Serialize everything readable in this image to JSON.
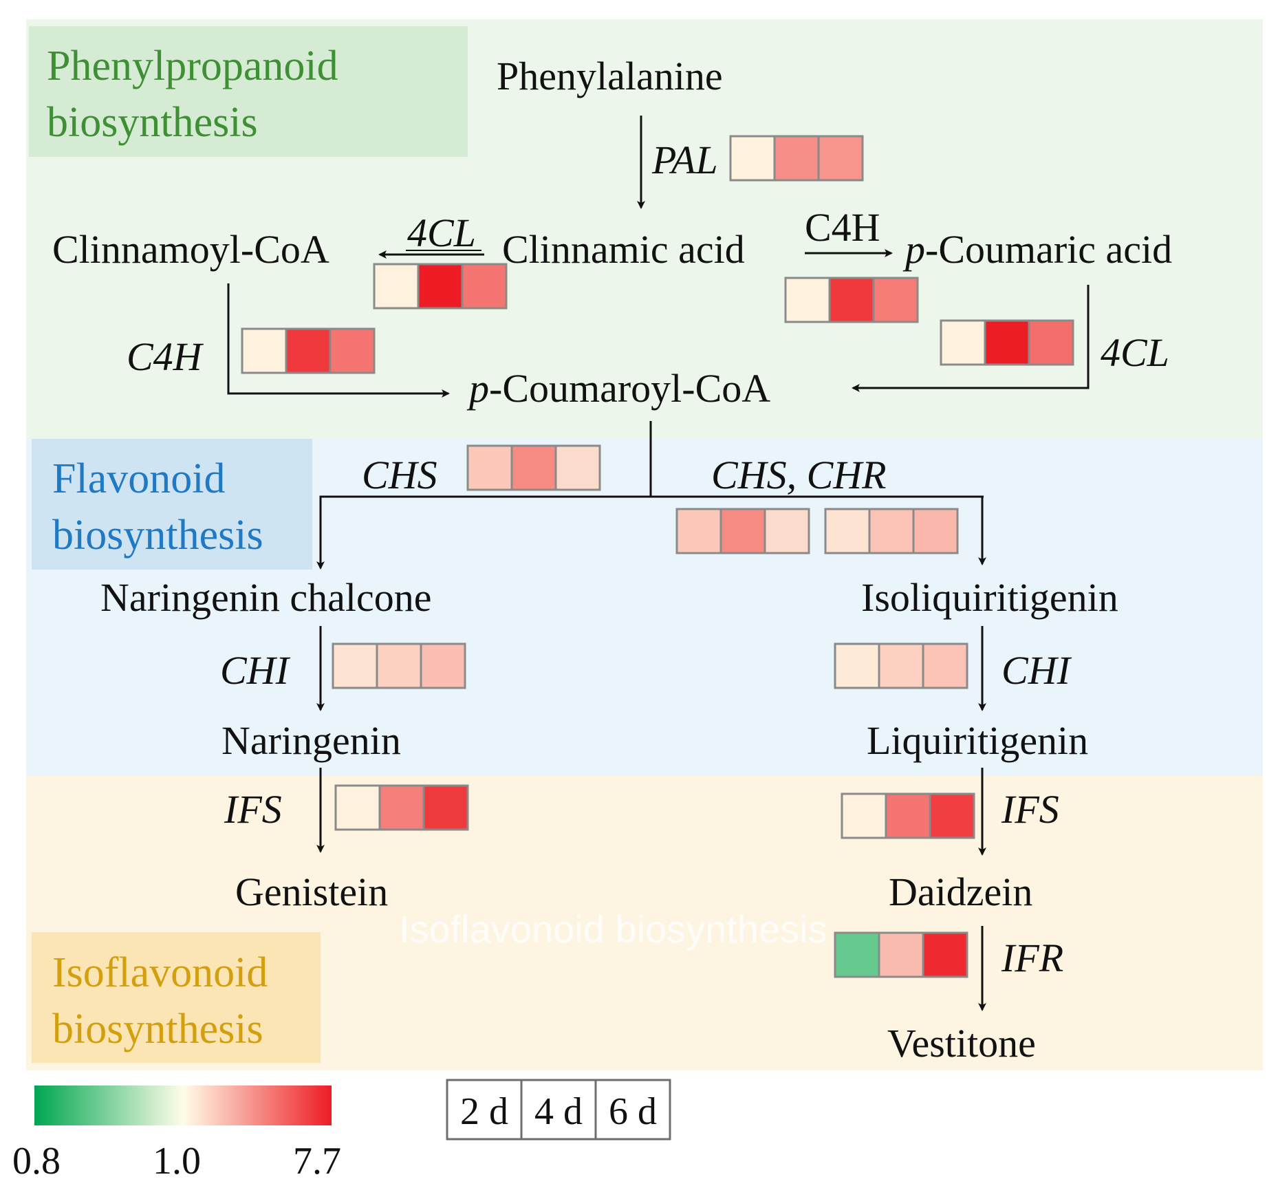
{
  "colors": {
    "phenyl_bg": "#ecf6ea",
    "phenyl_label_bg": "#d5ebd3",
    "phenyl_text": "#3f8f35",
    "flavonoid_bg": "#eaf4fb",
    "flavonoid_label_bg": "#cfe4f3",
    "flavonoid_text": "#1f79c4",
    "isoflavonoid_bg": "#fdf5e2",
    "isoflavonoid_label_bg": "#fce5b4",
    "isoflavonoid_text": "#d39f0e",
    "arrow": "#111111",
    "cell_border": "#8a8a8a"
  },
  "regions": {
    "phenylpropanoid": {
      "title_line1": "Phenylpropanoid",
      "title_line2": "biosynthesis"
    },
    "flavonoid": {
      "title_line1": "Flavonoid",
      "title_line2": "biosynthesis"
    },
    "isoflavonoid": {
      "title_line1": "Isoflavonoid",
      "title_line2": "biosynthesis"
    }
  },
  "watermark": "Isoflavonoid biosynthesis",
  "compounds": {
    "phenylalanine": "Phenylalanine",
    "clinnamoyl_coa": "Clinnamoyl-CoA",
    "clinnamic_acid": "Clinnamic acid",
    "p_coumaric_prefix": "p",
    "p_coumaric_rest": "-Coumaric acid",
    "p_coumaroyl_prefix": "p",
    "p_coumaroyl_rest": "-Coumaroyl-CoA",
    "naringenin_chalcone": "Naringenin chalcone",
    "isoliquiritigenin": "Isoliquiritigenin",
    "naringenin": "Naringenin",
    "liquiritigenin": "Liquiritigenin",
    "genistein": "Genistein",
    "daidzein": "Daidzein",
    "vestitone": "Vestitone"
  },
  "enzymes": {
    "pal": "PAL",
    "cl4_left": "4CL",
    "c4h_top": "C4H",
    "c4h_left": "C4H",
    "cl4_right": "4CL",
    "chs": "CHS",
    "chs_chr": "CHS, CHR",
    "chi_left": "CHI",
    "chi_right": "CHI",
    "ifs_left": "IFS",
    "ifs_right": "IFS",
    "ifr": "IFR"
  },
  "heatmaps": [
    {
      "id": "pal",
      "values": [
        1.05,
        2.3,
        2.2
      ]
    },
    {
      "id": "4cl-left",
      "values": [
        1.05,
        7.7,
        3.0
      ]
    },
    {
      "id": "c4h-top",
      "values": [
        1.05,
        5.6,
        2.8
      ]
    },
    {
      "id": "c4h-left",
      "values": [
        1.05,
        5.6,
        3.0
      ]
    },
    {
      "id": "4cl-right",
      "values": [
        1.05,
        7.6,
        3.2
      ]
    },
    {
      "id": "chs",
      "values": [
        1.4,
        2.4,
        1.2
      ]
    },
    {
      "id": "chs-1",
      "values": [
        1.4,
        2.4,
        1.2
      ]
    },
    {
      "id": "chr",
      "values": [
        1.15,
        1.45,
        1.6
      ]
    },
    {
      "id": "chi-left",
      "values": [
        1.15,
        1.3,
        1.5
      ]
    },
    {
      "id": "chi-right",
      "values": [
        1.1,
        1.3,
        1.45
      ]
    },
    {
      "id": "ifs-left",
      "values": [
        1.05,
        2.7,
        5.5
      ]
    },
    {
      "id": "ifs-right",
      "values": [
        1.05,
        3.0,
        5.3
      ]
    },
    {
      "id": "ifr",
      "values": [
        0.88,
        1.55,
        6.6
      ]
    }
  ],
  "color_scale": {
    "min": 0.8,
    "mid": 1.0,
    "max": 7.7,
    "min_label": "0.8",
    "mid_label": "1.0",
    "max_label": "7.7",
    "stops": [
      "#00a651",
      "#fffde8",
      "#ed1c24"
    ]
  },
  "time_legend": {
    "labels": [
      "2 d",
      "4 d",
      "6 d"
    ]
  }
}
